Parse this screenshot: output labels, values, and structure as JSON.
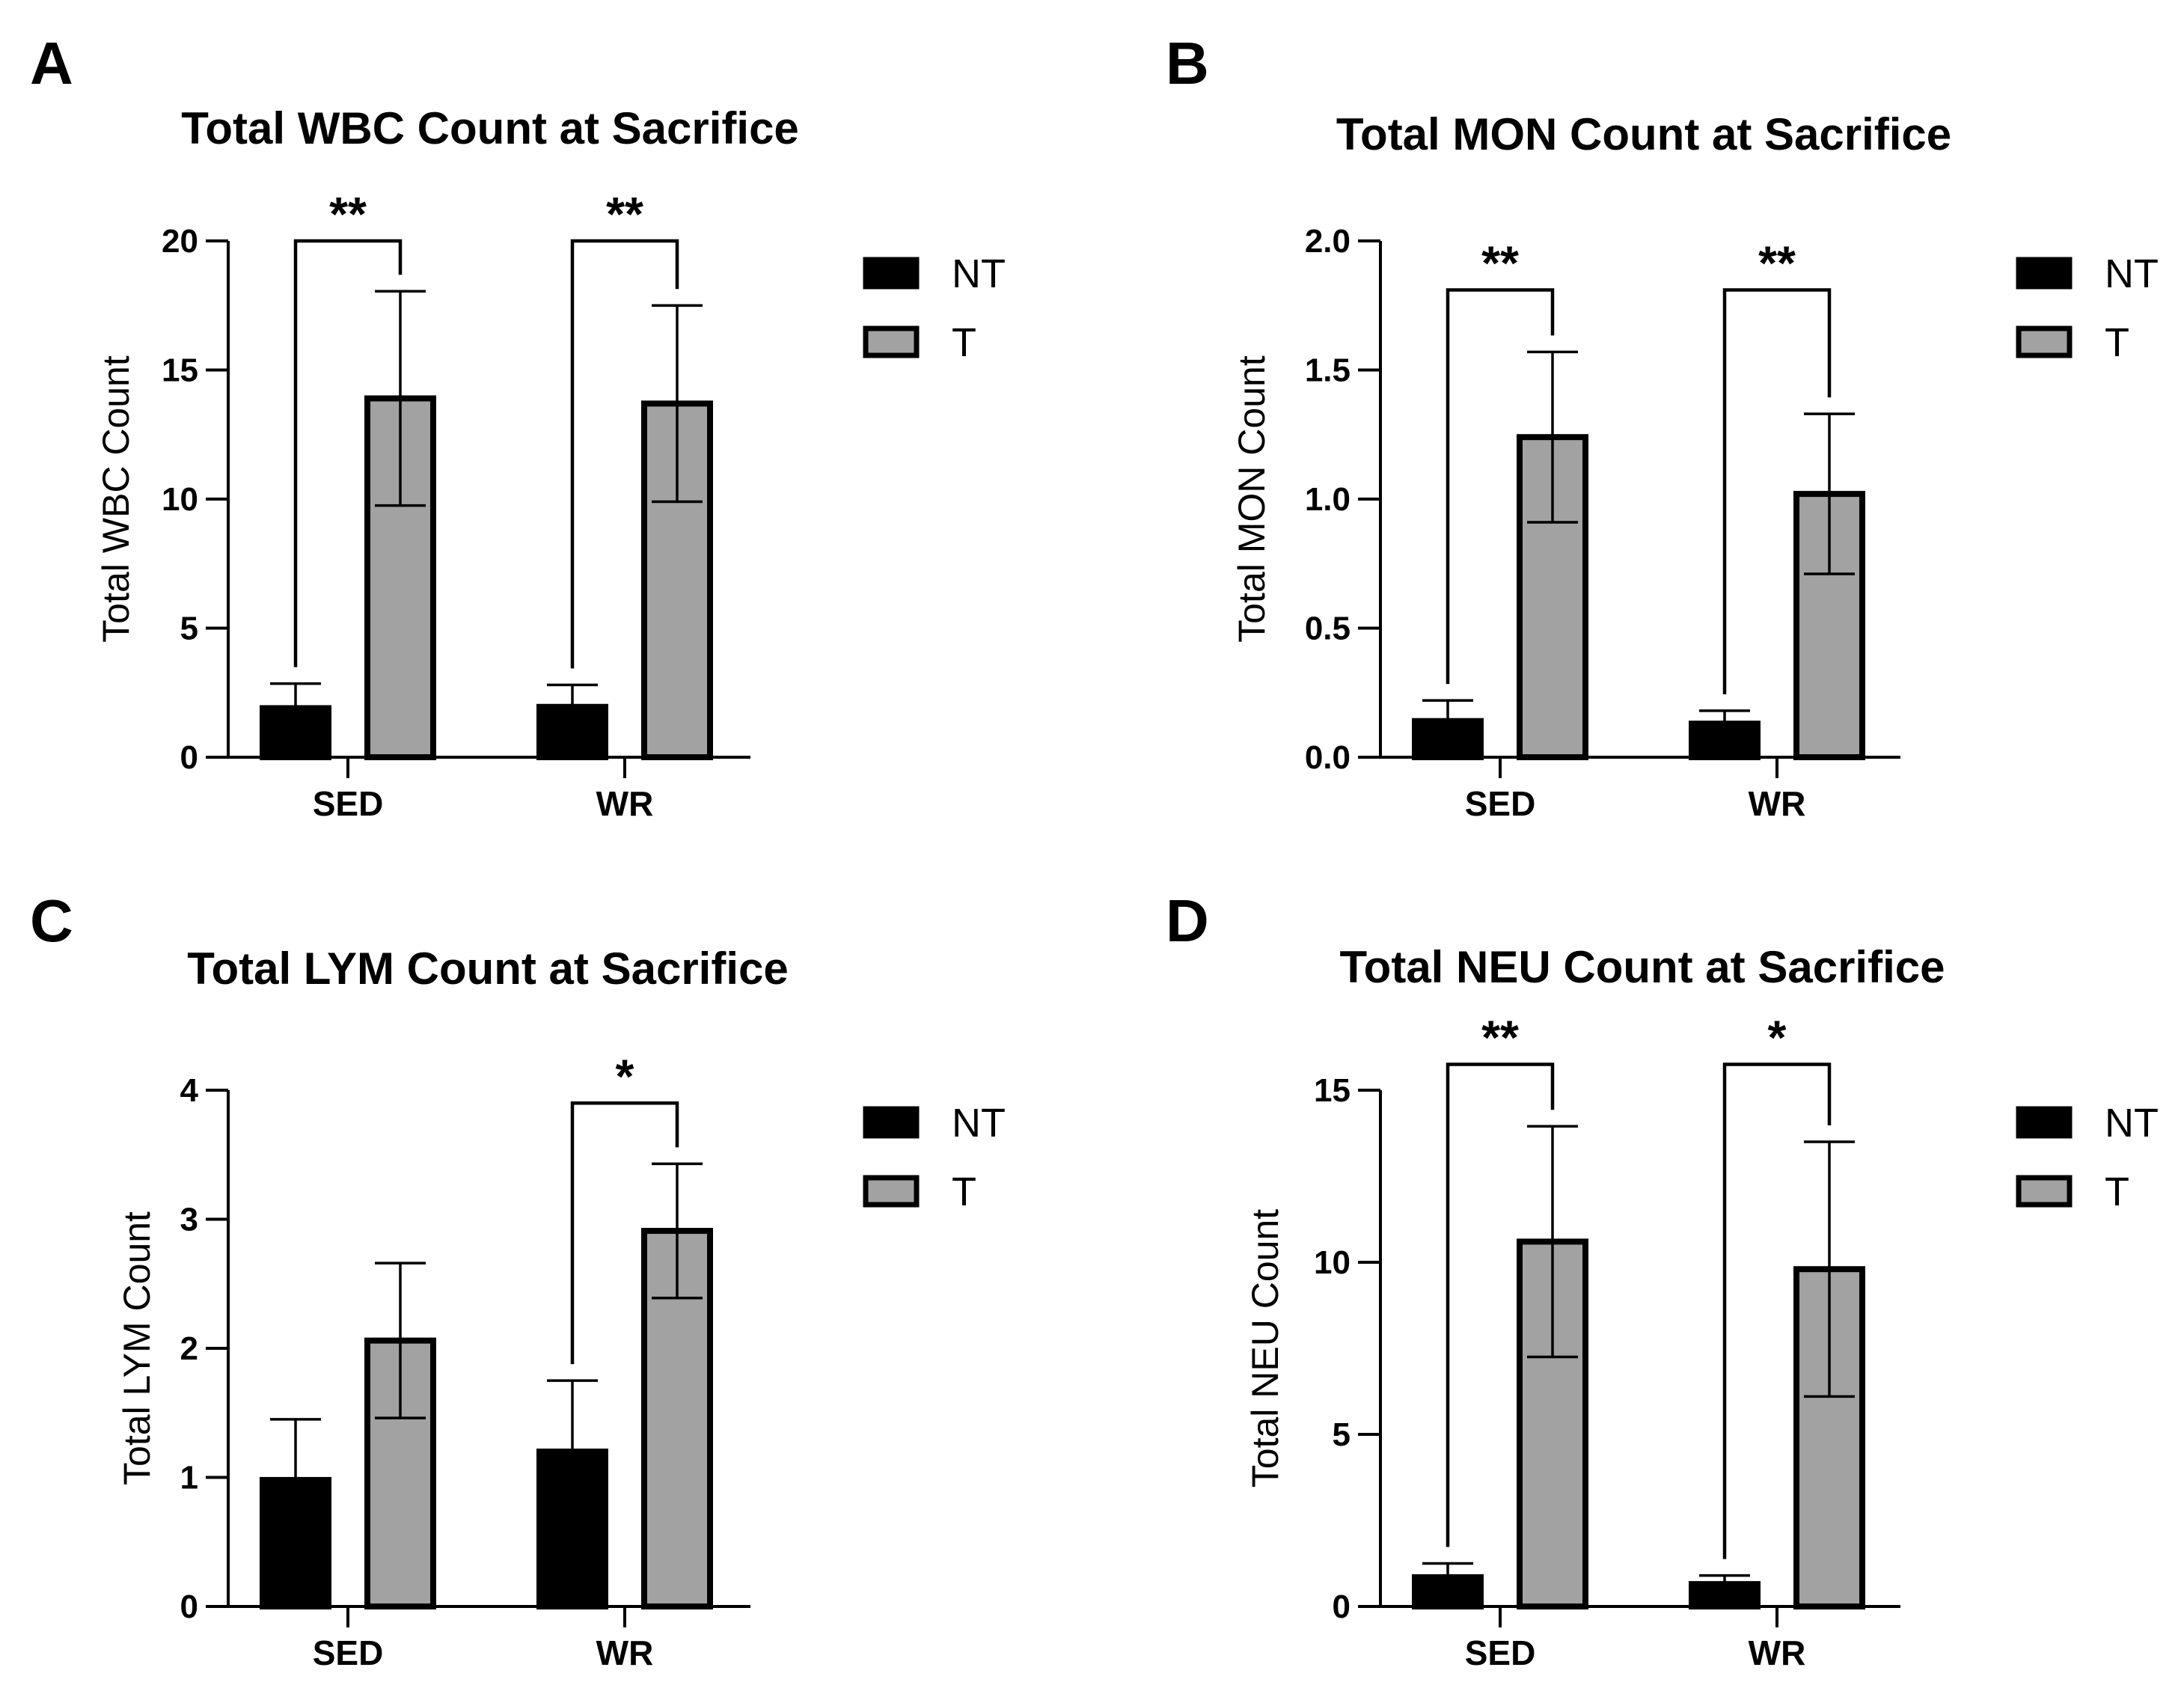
{
  "colors": {
    "NT": "#000000",
    "T": "#a2a2a2",
    "ink": "#000000"
  },
  "chart_data": [
    {
      "type": "bar",
      "panel": "A",
      "title": "Total WBC Count at Sacrifice",
      "ylabel": "Total WBC Count",
      "xlabel": "",
      "categories": [
        "SED",
        "WR"
      ],
      "ylim": [
        0,
        20
      ],
      "yticks": [
        0,
        5,
        10,
        15,
        20
      ],
      "series": [
        {
          "name": "NT",
          "values": [
            1.9,
            1.95
          ],
          "errors": [
            0.95,
            0.85
          ]
        },
        {
          "name": "T",
          "values": [
            13.9,
            13.7
          ],
          "errors": [
            4.15,
            3.8
          ]
        }
      ],
      "significance": [
        {
          "category": "SED",
          "label": "**",
          "bracket_top": 20.0
        },
        {
          "category": "WR",
          "label": "**",
          "bracket_top": 20.0
        }
      ],
      "legend": [
        "NT",
        "T"
      ]
    },
    {
      "type": "bar",
      "panel": "B",
      "title": "Total MON Count at Sacrifice",
      "ylabel": "Total MON Count",
      "xlabel": "",
      "categories": [
        "SED",
        "WR"
      ],
      "ylim": [
        0,
        2
      ],
      "yticks": [
        "0.0",
        "0.5",
        "1.0",
        "1.5",
        "2.0"
      ],
      "series": [
        {
          "name": "NT",
          "values": [
            0.14,
            0.13
          ],
          "errors": [
            0.08,
            0.05
          ]
        },
        {
          "name": "T",
          "values": [
            1.24,
            1.02
          ],
          "errors": [
            0.33,
            0.31
          ]
        }
      ],
      "significance": [
        {
          "category": "SED",
          "label": "**",
          "bracket_top": 1.81
        },
        {
          "category": "WR",
          "label": "**",
          "bracket_top": 1.81
        }
      ],
      "legend": [
        "NT",
        "T"
      ]
    },
    {
      "type": "bar",
      "panel": "C",
      "title": "Total LYM Count at Sacrifice",
      "ylabel": "Total LYM Count",
      "xlabel": "",
      "categories": [
        "SED",
        "WR"
      ],
      "ylim": [
        0,
        4
      ],
      "yticks": [
        0,
        1,
        2,
        3,
        4
      ],
      "series": [
        {
          "name": "NT",
          "values": [
            0.98,
            1.2
          ],
          "errors": [
            0.47,
            0.55
          ]
        },
        {
          "name": "T",
          "values": [
            2.06,
            2.91
          ],
          "errors": [
            0.6,
            0.52
          ]
        }
      ],
      "significance": [
        {
          "category": "WR",
          "label": "*",
          "bracket_top": 3.9
        }
      ],
      "legend": [
        "NT",
        "T"
      ]
    },
    {
      "type": "bar",
      "panel": "D",
      "title": "Total NEU Count at Sacrifice",
      "ylabel": "Total NEU Count",
      "xlabel": "",
      "categories": [
        "SED",
        "WR"
      ],
      "ylim": [
        0,
        15
      ],
      "yticks": [
        0,
        5,
        10,
        15
      ],
      "series": [
        {
          "name": "NT",
          "values": [
            0.85,
            0.65
          ],
          "errors": [
            0.4,
            0.25
          ]
        },
        {
          "name": "T",
          "values": [
            10.6,
            9.8
          ],
          "errors": [
            3.35,
            3.7
          ]
        }
      ],
      "significance": [
        {
          "category": "SED",
          "label": "**",
          "bracket_top": 15.75
        },
        {
          "category": "WR",
          "label": "*",
          "bracket_top": 15.75
        }
      ],
      "legend": [
        "NT",
        "T"
      ]
    }
  ]
}
